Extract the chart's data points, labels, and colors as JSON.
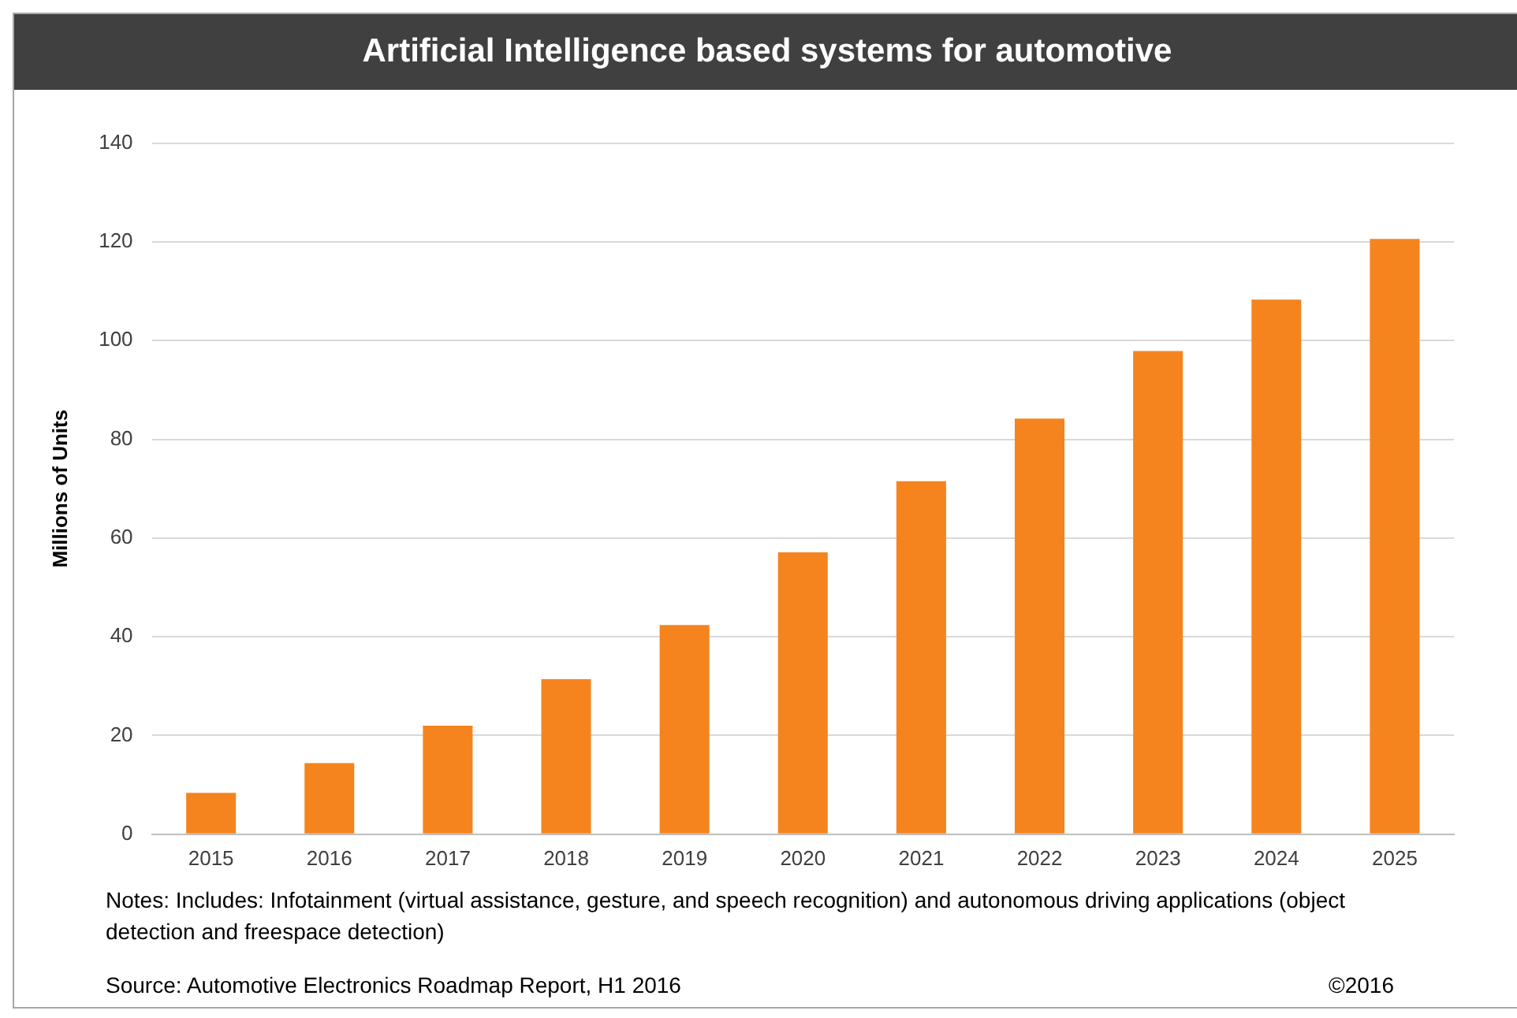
{
  "chart_data": {
    "type": "bar",
    "title": "Artificial Intelligence based systems for automotive",
    "ylabel": "Millions of Units",
    "categories": [
      "2015",
      "2016",
      "2017",
      "2018",
      "2019",
      "2020",
      "2021",
      "2022",
      "2023",
      "2024",
      "2025"
    ],
    "values": [
      8.4,
      14.4,
      22,
      31.4,
      42.4,
      57.1,
      71.5,
      84.2,
      97.9,
      108.3,
      120.6
    ],
    "color": "#f5841f",
    "ylim": [
      0,
      140
    ],
    "yticks": [
      0,
      20,
      40,
      60,
      80,
      100,
      120,
      140
    ],
    "grid": "y",
    "legend": false,
    "annotations": [
      "Notes: Includes: Infotainment (virtual assistance, gesture, and speech recognition) and autonomous driving applications (object detection and freespace detection)",
      "Source: Automotive Electronics Roadmap Report, H1 2016",
      "©2016"
    ]
  }
}
